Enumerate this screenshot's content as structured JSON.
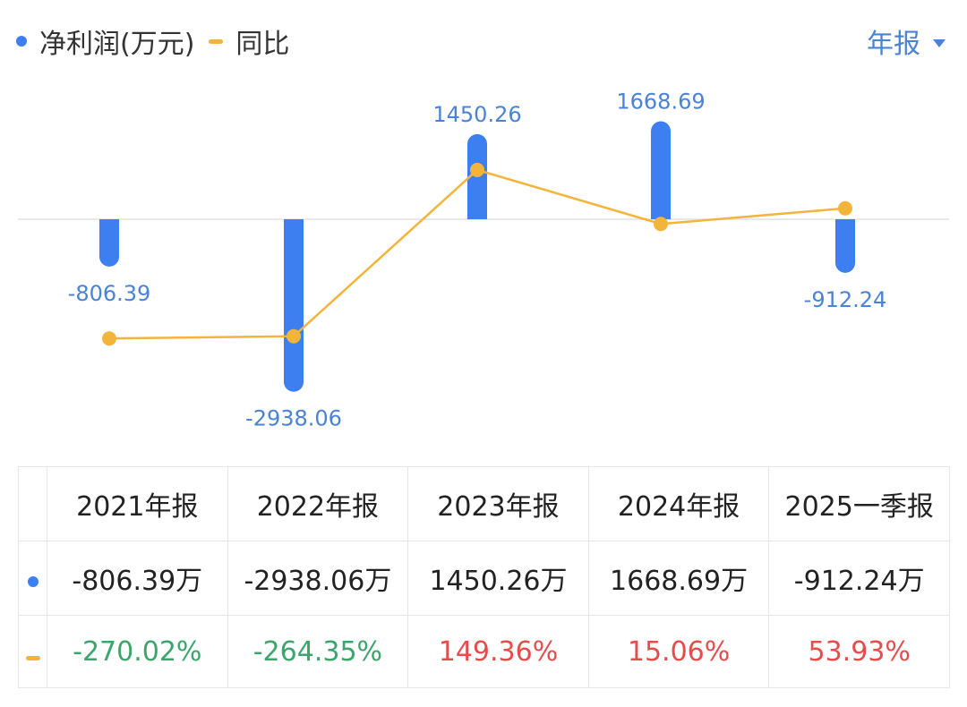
{
  "legend": {
    "profit_label": "净利润(万元)",
    "yoy_label": "同比"
  },
  "period_selector": {
    "label": "年报"
  },
  "colors": {
    "bar": "#3d7ff0",
    "line": "#f3b43b",
    "label": "#4a82d6",
    "positive": "#e54d4d",
    "negative": "#3ba56b",
    "dropdown": "#4a82d6"
  },
  "chart_data": {
    "type": "bar+line",
    "categories": [
      "2021年报",
      "2022年报",
      "2023年报",
      "2024年报",
      "2025一季报"
    ],
    "series": [
      {
        "name": "净利润(万元)",
        "type": "bar",
        "values": [
          -806.39,
          -2938.06,
          1450.26,
          1668.69,
          -912.24
        ]
      },
      {
        "name": "同比",
        "type": "line",
        "values": [
          -270.02,
          -264.35,
          149.36,
          15.06,
          53.93
        ]
      }
    ],
    "data_labels": [
      "-806.39",
      "-2938.06",
      "1450.26",
      "1668.69",
      "-912.24"
    ],
    "legend_position": "top-left"
  },
  "table": {
    "headers": [
      "2021年报",
      "2022年报",
      "2023年报",
      "2024年报",
      "2025一季报"
    ],
    "profit_row": [
      "-806.39万",
      "-2938.06万",
      "1450.26万",
      "1668.69万",
      "-912.24万"
    ],
    "yoy_row": [
      "-270.02%",
      "-264.35%",
      "149.36%",
      "15.06%",
      "53.93%"
    ]
  }
}
